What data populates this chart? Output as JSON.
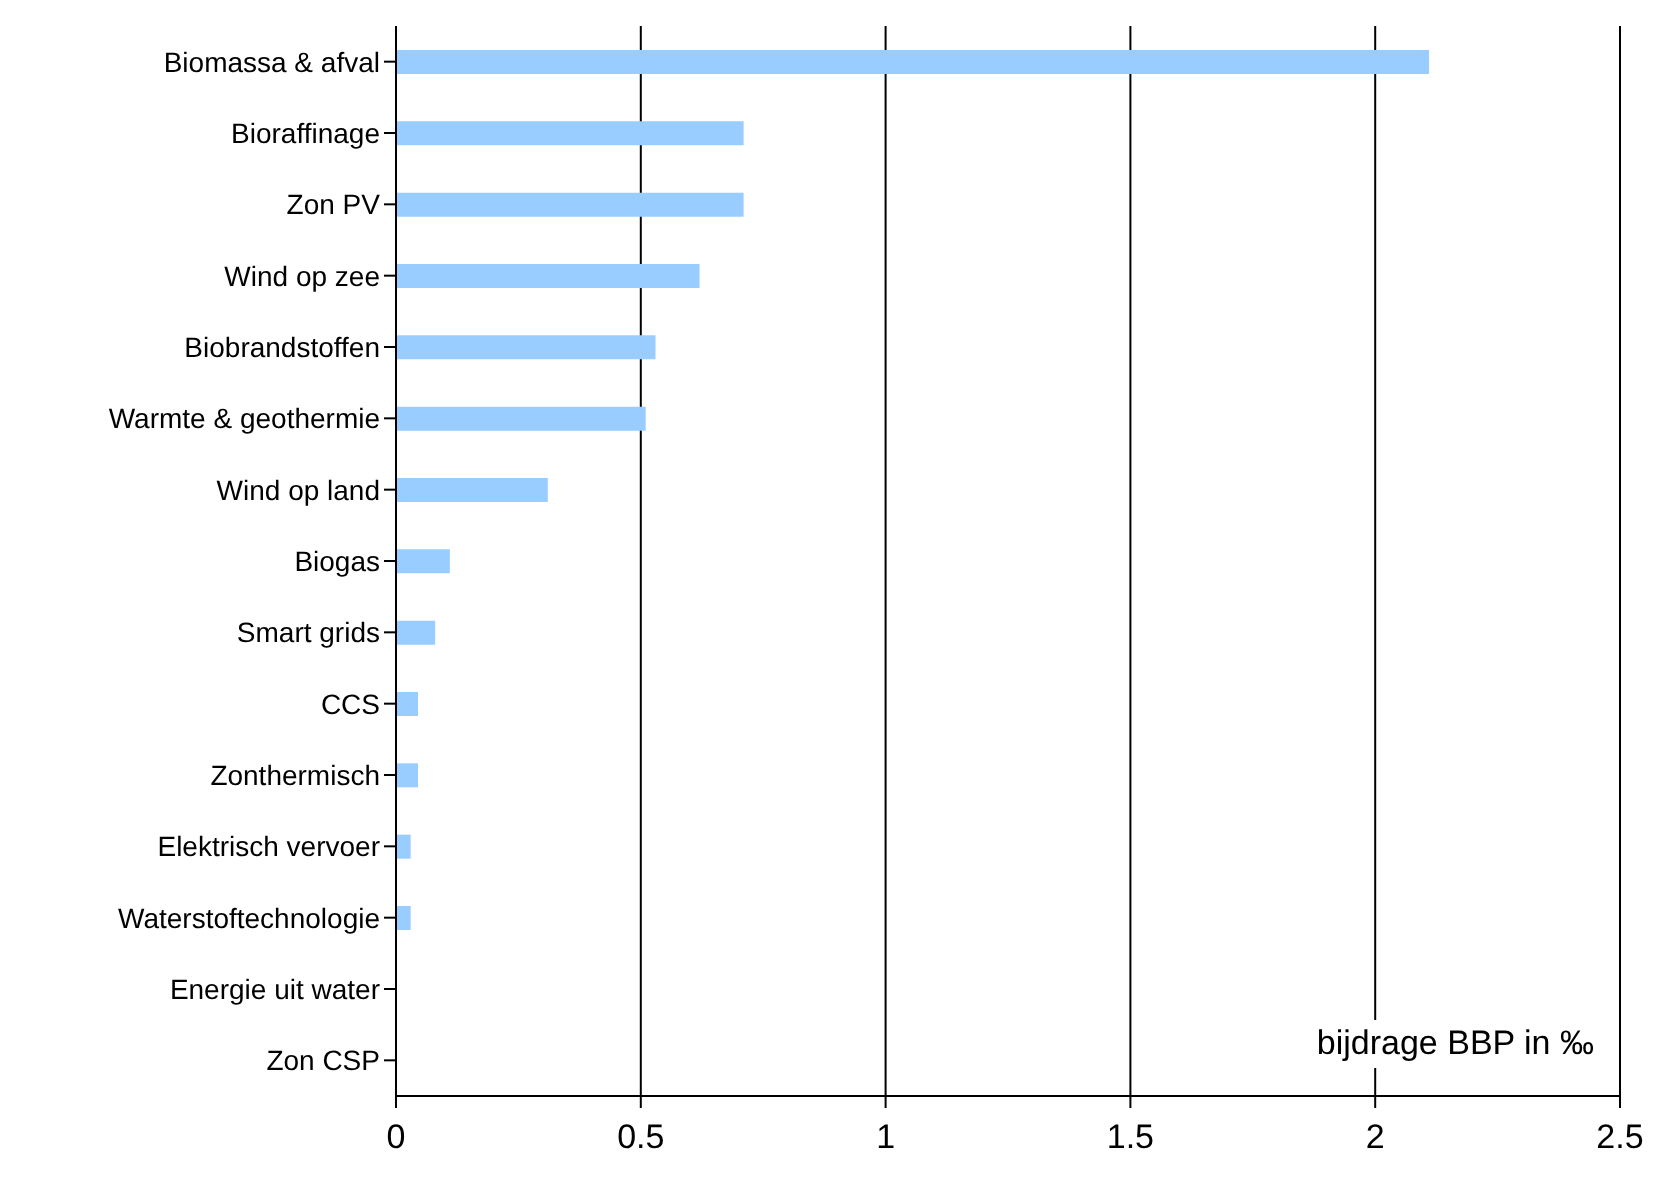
{
  "chart_data": {
    "type": "bar",
    "orientation": "horizontal",
    "xlabel": "bijdrage BBP in ‰",
    "categories": [
      "Biomassa & afval",
      "Bioraffinage",
      "Zon PV",
      "Wind op zee",
      "Biobrandstoffen",
      "Warmte & geothermie",
      "Wind op land",
      "Biogas",
      "Smart grids",
      "CCS",
      "Zonthermisch",
      "Elektrisch vervoer",
      "Waterstoftechnologie",
      "Energie uit water",
      "Zon CSP"
    ],
    "values": [
      2.11,
      0.71,
      0.71,
      0.62,
      0.53,
      0.51,
      0.31,
      0.11,
      0.08,
      0.045,
      0.045,
      0.03,
      0.03,
      0,
      0
    ],
    "color": "#99ccff",
    "xlim": [
      0,
      2.5
    ],
    "xticks": [
      0,
      0.5,
      1,
      1.5,
      2,
      2.5
    ],
    "grid": "x"
  }
}
